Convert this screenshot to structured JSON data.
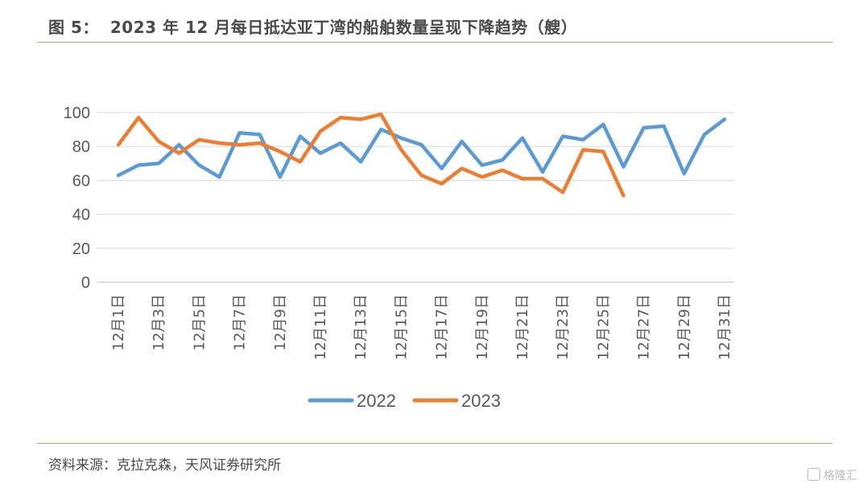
{
  "header": {
    "figure_label": "图 5：",
    "title": "2023 年 12 月每日抵达亚丁湾的船舶数量呈现下降趋势（艘）"
  },
  "footer": {
    "source": "资料来源：克拉克森，天风证券研究所"
  },
  "watermark": "格隆汇",
  "colors": {
    "series_2022": "#5b9bd5",
    "series_2023": "#ed7d31",
    "grid": "#d9d9d9",
    "rule": "#c9a06a"
  },
  "chart_data": {
    "type": "line",
    "ylim": [
      0,
      100
    ],
    "yticks": [
      0,
      20,
      40,
      60,
      80,
      100
    ],
    "grid": true,
    "legend": "bottom",
    "x": [
      "12月1日",
      "12月2日",
      "12月3日",
      "12月4日",
      "12月5日",
      "12月6日",
      "12月7日",
      "12月8日",
      "12月9日",
      "12月10日",
      "12月11日",
      "12月12日",
      "12月13日",
      "12月14日",
      "12月15日",
      "12月16日",
      "12月17日",
      "12月18日",
      "12月19日",
      "12月20日",
      "12月21日",
      "12月22日",
      "12月23日",
      "12月24日",
      "12月25日",
      "12月26日",
      "12月27日",
      "12月28日",
      "12月29日",
      "12月30日",
      "12月31日"
    ],
    "xtick_labels": [
      "12月1日",
      "12月3日",
      "12月5日",
      "12月7日",
      "12月9日",
      "12月11日",
      "12月13日",
      "12月15日",
      "12月17日",
      "12月19日",
      "12月21日",
      "12月23日",
      "12月25日",
      "12月27日",
      "12月29日",
      "12月31日"
    ],
    "series": [
      {
        "name": "2022",
        "values": [
          63,
          69,
          70,
          81,
          69,
          62,
          88,
          87,
          62,
          86,
          76,
          82,
          71,
          90,
          85,
          81,
          67,
          83,
          69,
          72,
          85,
          65,
          86,
          84,
          93,
          68,
          91,
          92,
          64,
          87,
          96
        ]
      },
      {
        "name": "2023",
        "values": [
          81,
          97,
          83,
          76,
          84,
          82,
          81,
          82,
          77,
          71,
          89,
          97,
          96,
          99,
          78,
          63,
          58,
          67,
          62,
          66,
          61,
          61,
          53,
          78,
          77,
          51,
          null,
          null,
          null,
          null,
          null
        ]
      }
    ]
  }
}
